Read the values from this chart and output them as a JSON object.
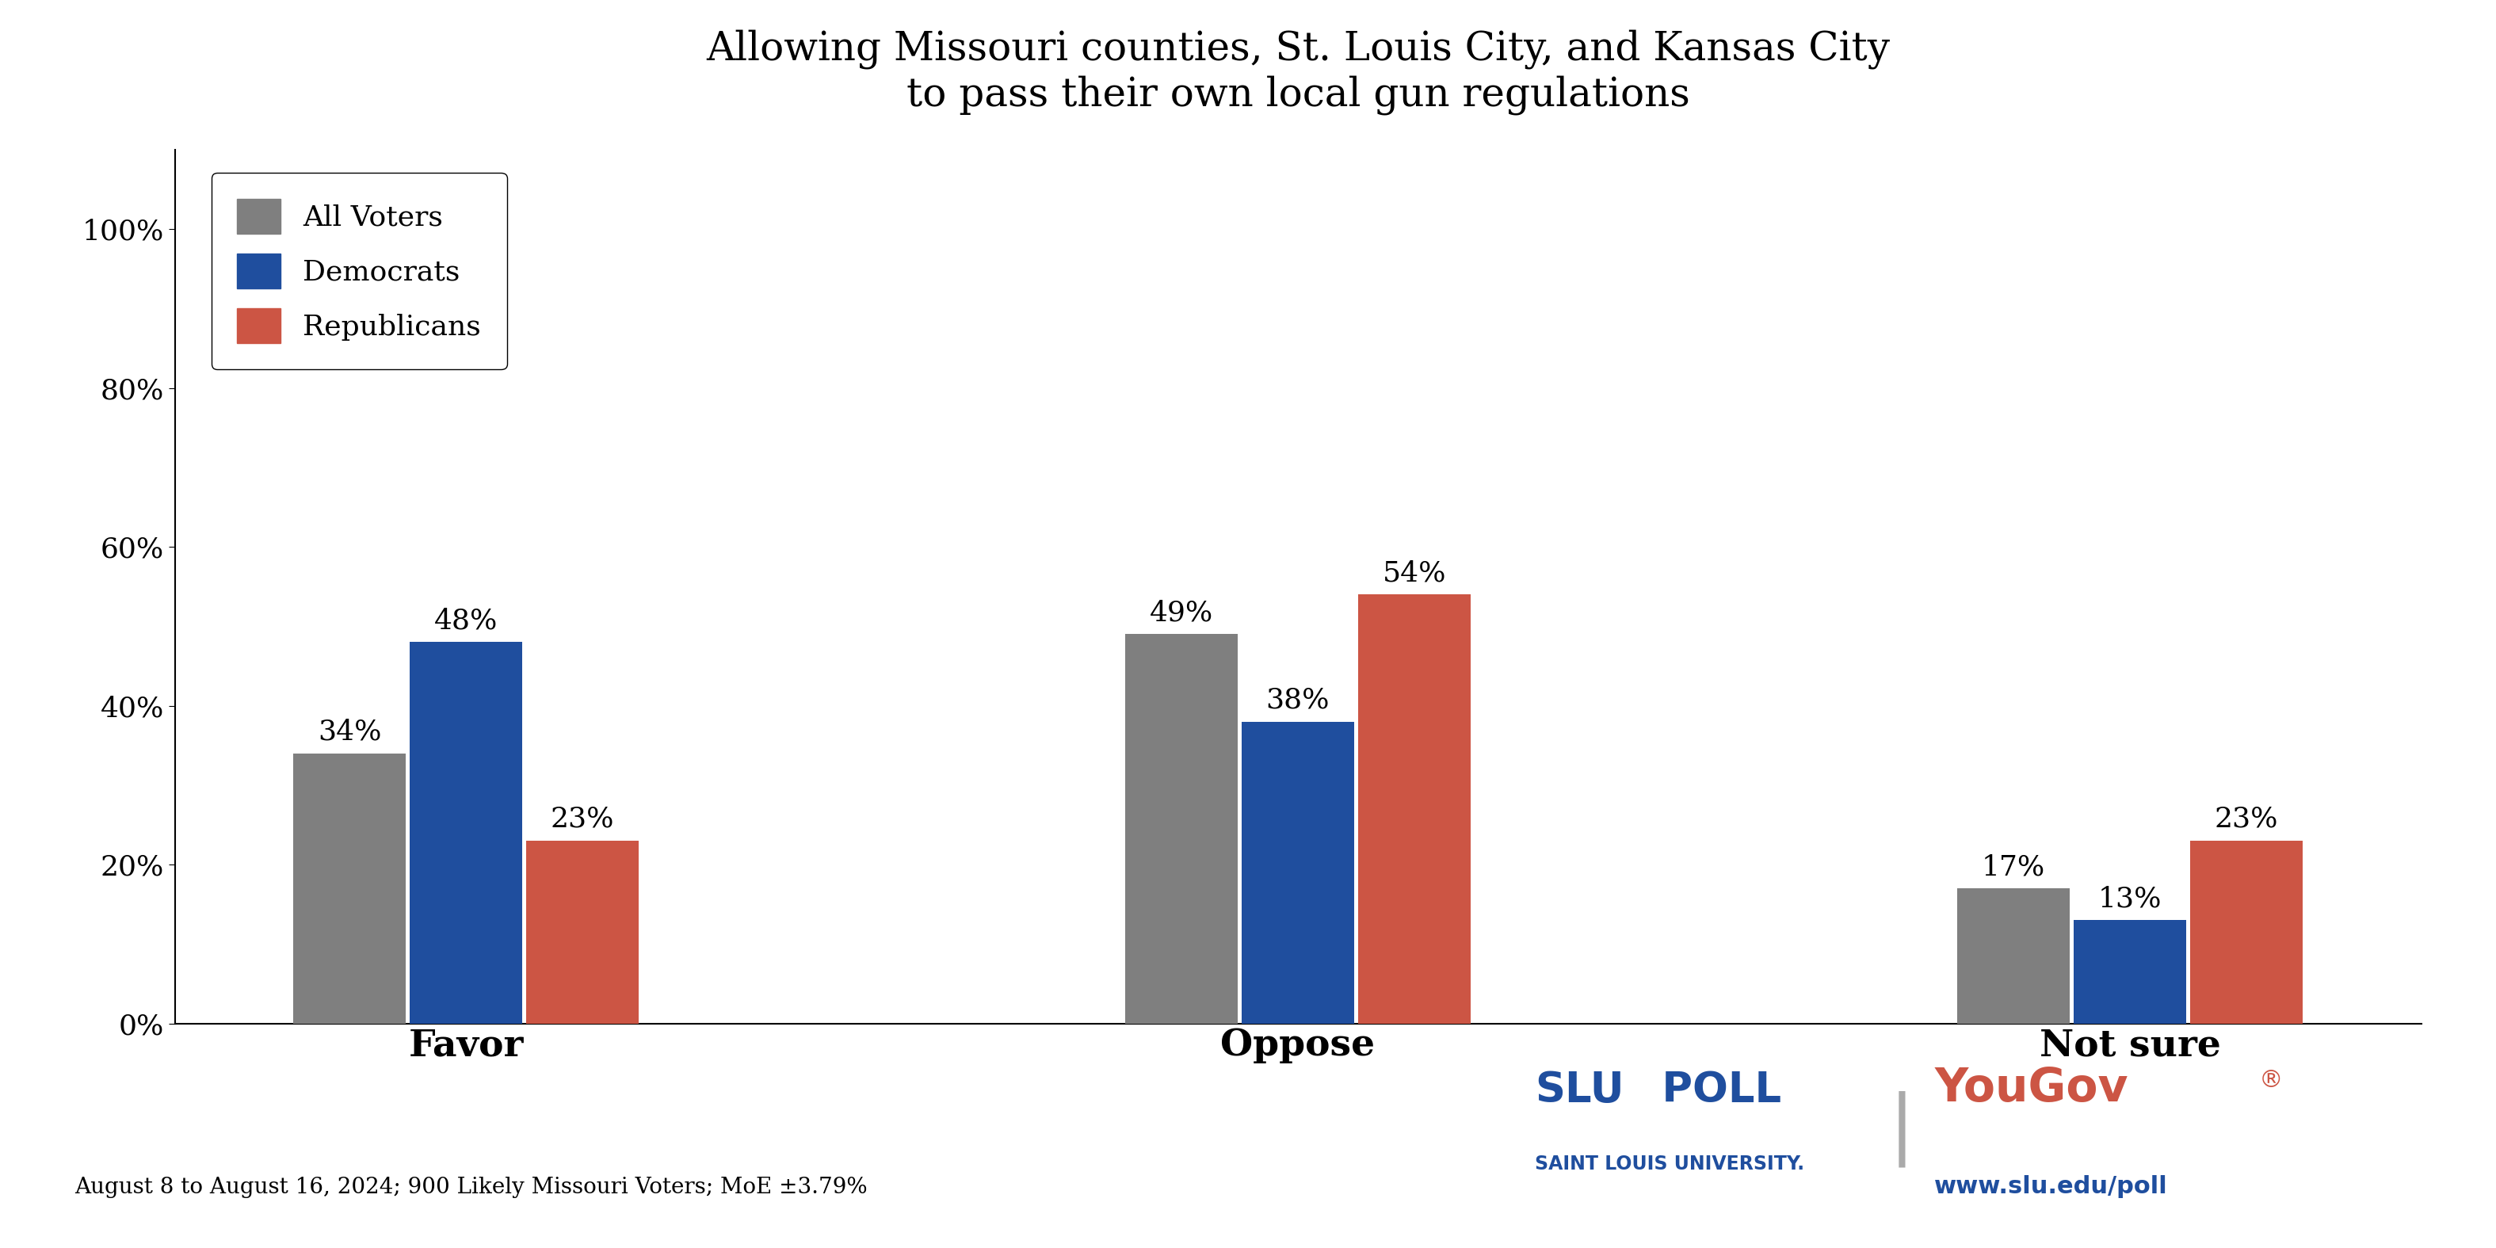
{
  "title": "Allowing Missouri counties, St. Louis City, and Kansas City\nto pass their own local gun regulations",
  "categories": [
    "Favor",
    "Oppose",
    "Not sure"
  ],
  "groups": [
    "All Voters",
    "Democrats",
    "Republicans"
  ],
  "values": {
    "Favor": [
      34,
      48,
      23
    ],
    "Oppose": [
      49,
      38,
      54
    ],
    "Not sure": [
      17,
      13,
      23
    ]
  },
  "colors": {
    "All Voters": "#7f7f7f",
    "Democrats": "#1f4e9e",
    "Republicans": "#cc5544"
  },
  "bar_width": 0.28,
  "group_centers": [
    1.0,
    3.0,
    5.0
  ],
  "ylim": [
    0,
    100
  ],
  "yticks": [
    0,
    20,
    40,
    60,
    80,
    100
  ],
  "title_fontsize": 36,
  "label_fontsize": 28,
  "tick_fontsize": 26,
  "legend_fontsize": 26,
  "annot_fontsize": 26,
  "footnote": "August 8 to August 16, 2024; 900 Likely Missouri Voters; MoE ±3.79%",
  "footnote_fontsize": 20,
  "slu_color": "#1f4e9e",
  "yougov_color": "#cc5544",
  "background_color": "#ffffff"
}
